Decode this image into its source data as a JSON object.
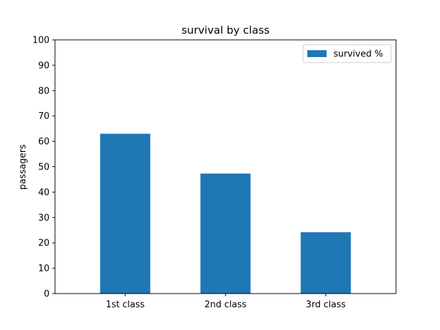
{
  "chart_data": {
    "type": "bar",
    "title": "survival by class",
    "xlabel": "",
    "ylabel": "passagers",
    "categories": [
      "1st class",
      "2nd class",
      "3rd class"
    ],
    "series": [
      {
        "name": "survived %",
        "values": [
          63,
          47.3,
          24.2
        ],
        "color": "#1f77b4"
      }
    ],
    "ylim": [
      0,
      100
    ],
    "yticks": [
      0,
      10,
      20,
      30,
      40,
      50,
      60,
      70,
      80,
      90,
      100
    ],
    "grid": false,
    "legend_position": "top-right"
  }
}
